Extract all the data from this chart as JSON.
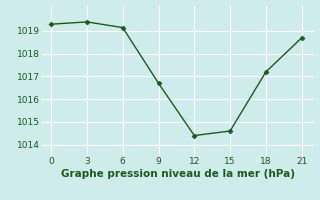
{
  "x": [
    0,
    3,
    6,
    9,
    12,
    15,
    18,
    21
  ],
  "y": [
    1019.3,
    1019.4,
    1019.15,
    1016.7,
    1014.4,
    1014.6,
    1017.2,
    1018.7
  ],
  "line_color": "#1a5c1a",
  "marker": "D",
  "marker_size": 2.5,
  "bg_color": "#ceecea",
  "grid_color": "#ffffff",
  "xlabel": "Graphe pression niveau de la mer (hPa)",
  "xlabel_color": "#1a5c1a",
  "xlabel_fontsize": 7.5,
  "xticks": [
    0,
    3,
    6,
    9,
    12,
    15,
    18,
    21
  ],
  "yticks": [
    1014,
    1015,
    1016,
    1017,
    1018,
    1019
  ],
  "ylim": [
    1013.5,
    1020.1
  ],
  "xlim": [
    -0.8,
    22.0
  ],
  "tick_fontsize": 6.5,
  "tick_color": "#1a5c1a",
  "linewidth": 1.0
}
